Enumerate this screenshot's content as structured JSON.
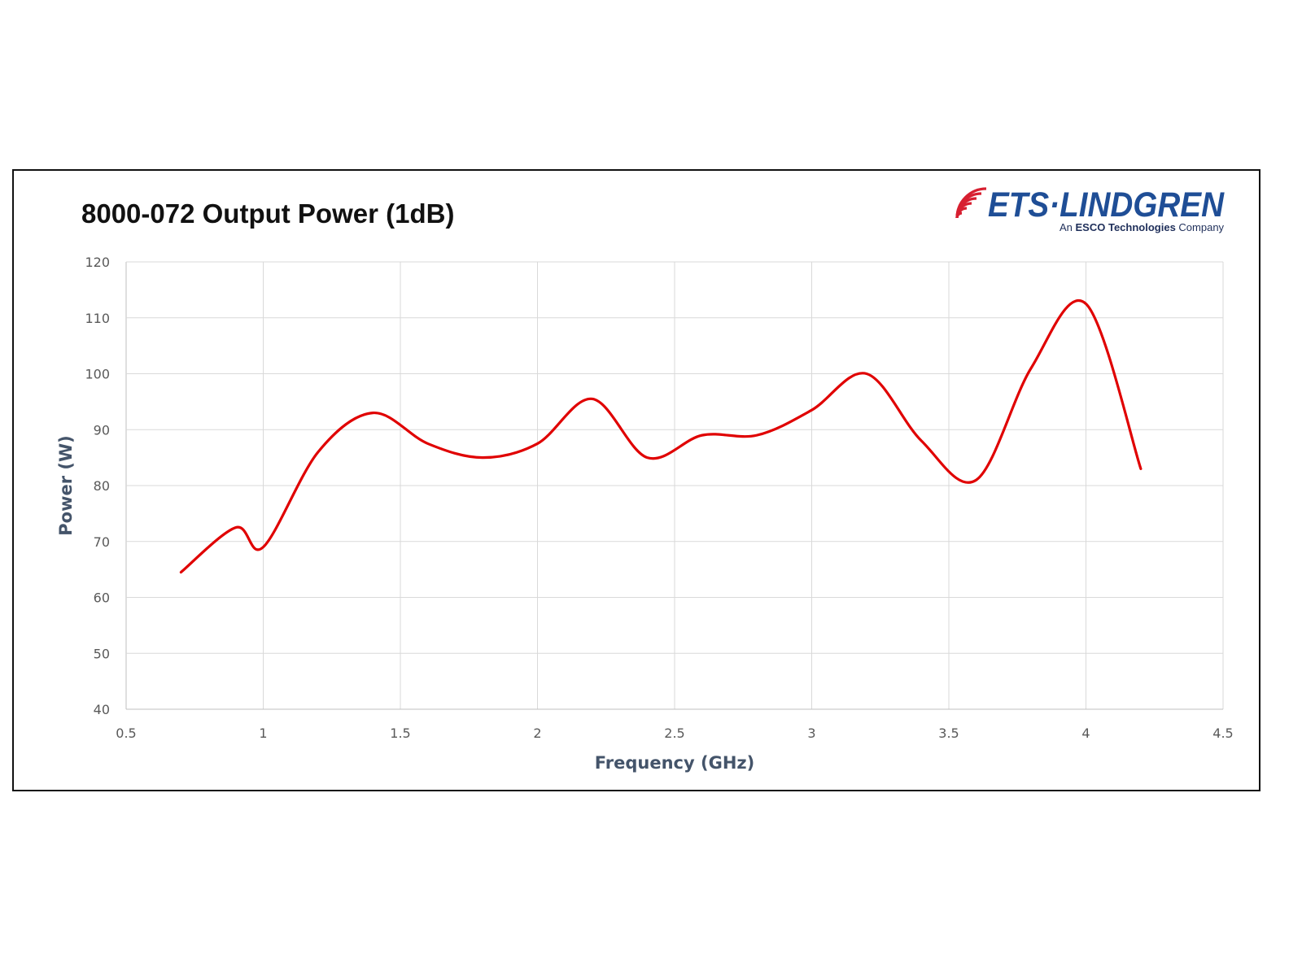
{
  "logo": {
    "brand": "ETS·LINDGREN",
    "tagline_prefix": "An ",
    "tagline_bold": "ESCO Technologies",
    "tagline_suffix": " Company"
  },
  "colors": {
    "line": "#e00000",
    "grid": "#d9d9d9",
    "axis_label": "#44546a",
    "brand_blue": "#1f4e96",
    "brand_red": "#d71f30"
  },
  "chart_data": {
    "type": "line",
    "title": "8000-072 Output Power (1dB)",
    "xlabel": "Frequency (GHz)",
    "ylabel": "Power (W)",
    "xlim": [
      0.5,
      4.5
    ],
    "ylim": [
      40,
      120
    ],
    "xticks": [
      0.5,
      1,
      1.5,
      2,
      2.5,
      3,
      3.5,
      4,
      4.5
    ],
    "yticks": [
      40,
      50,
      60,
      70,
      80,
      90,
      100,
      110,
      120
    ],
    "grid": true,
    "smooth": true,
    "series": [
      {
        "name": "Output Power",
        "x": [
          0.7,
          0.9,
          1.0,
          1.2,
          1.4,
          1.6,
          1.8,
          2.0,
          2.2,
          2.4,
          2.6,
          2.8,
          3.0,
          3.2,
          3.4,
          3.6,
          3.8,
          4.0,
          4.2
        ],
        "y": [
          64.5,
          72.5,
          69,
          86,
          93,
          87.5,
          85,
          87.5,
          95.5,
          85,
          89,
          89,
          93.5,
          100,
          88,
          81,
          101,
          112.5,
          83
        ]
      }
    ]
  }
}
